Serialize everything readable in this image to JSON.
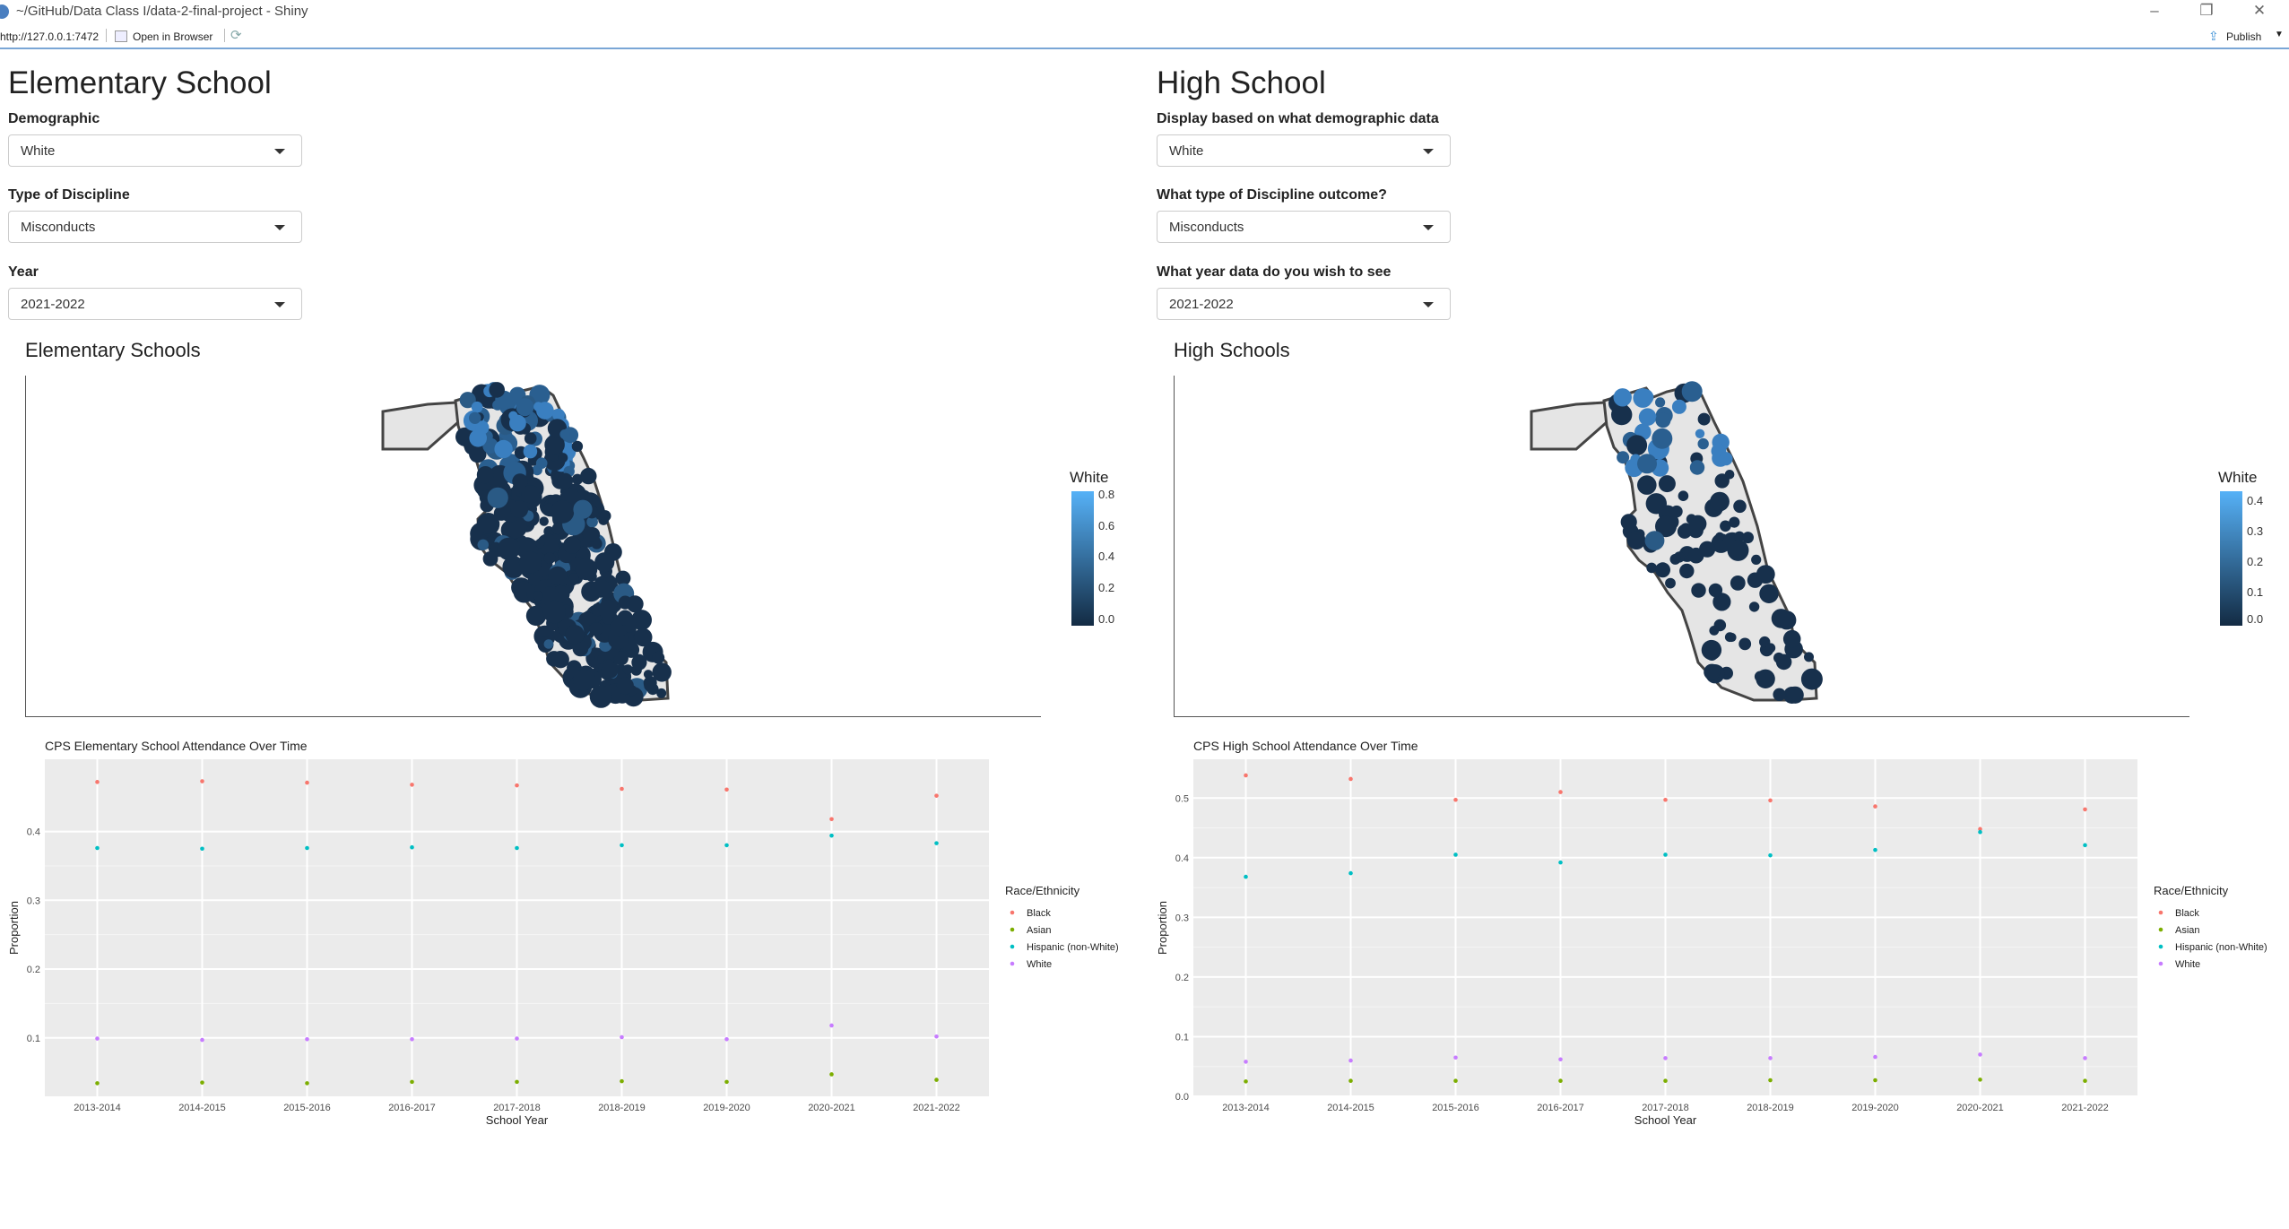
{
  "window": {
    "title": "~/GitHub/Data Class I/data-2-final-project - Shiny"
  },
  "toolbar": {
    "url": "http://127.0.0.1:7472",
    "open_browser": "Open in Browser",
    "publish": "Publish"
  },
  "elementary": {
    "heading": "Elementary School",
    "demographic": {
      "label": "Demographic",
      "value": "White"
    },
    "discipline": {
      "label": "Type of Discipline",
      "value": "Misconducts"
    },
    "year": {
      "label": "Year",
      "value": "2021-2022"
    },
    "map": {
      "title": "Elementary Schools",
      "legend_title": "White",
      "legend_ticks": [
        "0.8",
        "0.6",
        "0.4",
        "0.2",
        "0.0"
      ]
    }
  },
  "high": {
    "heading": "High School",
    "demographic": {
      "label": "Display based on what demographic data",
      "value": "White"
    },
    "discipline": {
      "label": "What type of Discipline outcome?",
      "value": "Misconducts"
    },
    "year": {
      "label": "What year data do you wish to see",
      "value": "2021-2022"
    },
    "map": {
      "title": "High Schools",
      "legend_title": "White",
      "legend_ticks": [
        "0.4",
        "0.3",
        "0.2",
        "0.1",
        "0.0"
      ]
    }
  },
  "chart_data": [
    {
      "type": "scatter",
      "title": "CPS Elementary School Attendance Over Time",
      "xlabel": "School Year",
      "ylabel": "Proportion",
      "categories": [
        "2013-2014",
        "2014-2015",
        "2015-2016",
        "2016-2017",
        "2017-2018",
        "2018-2019",
        "2019-2020",
        "2020-2021",
        "2021-2022"
      ],
      "ylim": [
        0.015,
        0.505
      ],
      "yticks": [
        0.1,
        0.2,
        0.3,
        0.4
      ],
      "legend_title": "Race/Ethnicity",
      "legend_position": "right",
      "grid": true,
      "series": [
        {
          "name": "Black",
          "color": "#F8766D",
          "values": [
            0.472,
            0.473,
            0.471,
            0.468,
            0.467,
            0.462,
            0.461,
            0.418,
            0.452
          ]
        },
        {
          "name": "Asian",
          "color": "#7CAE00",
          "values": [
            0.034,
            0.035,
            0.034,
            0.036,
            0.036,
            0.037,
            0.036,
            0.047,
            0.039
          ]
        },
        {
          "name": "Hispanic (non-White)",
          "color": "#00BFC4",
          "values": [
            0.376,
            0.375,
            0.376,
            0.377,
            0.376,
            0.38,
            0.38,
            0.394,
            0.383
          ]
        },
        {
          "name": "White",
          "color": "#C77CFF",
          "values": [
            0.099,
            0.097,
            0.098,
            0.098,
            0.099,
            0.101,
            0.098,
            0.118,
            0.102
          ]
        }
      ]
    },
    {
      "type": "scatter",
      "title": "CPS High School Attendance Over Time",
      "xlabel": "School Year",
      "ylabel": "Proportion",
      "categories": [
        "2013-2014",
        "2014-2015",
        "2015-2016",
        "2016-2017",
        "2017-2018",
        "2018-2019",
        "2019-2020",
        "2020-2021",
        "2021-2022"
      ],
      "ylim": [
        0.0,
        0.565
      ],
      "yticks": [
        0.0,
        0.1,
        0.2,
        0.3,
        0.4,
        0.5
      ],
      "legend_title": "Race/Ethnicity",
      "legend_position": "right",
      "grid": true,
      "series": [
        {
          "name": "Black",
          "color": "#F8766D",
          "values": [
            0.538,
            0.532,
            0.497,
            0.51,
            0.497,
            0.496,
            0.486,
            0.448,
            0.481
          ]
        },
        {
          "name": "Asian",
          "color": "#7CAE00",
          "values": [
            0.025,
            0.026,
            0.026,
            0.026,
            0.026,
            0.027,
            0.027,
            0.028,
            0.026
          ]
        },
        {
          "name": "Hispanic (non-White)",
          "color": "#00BFC4",
          "values": [
            0.368,
            0.374,
            0.405,
            0.392,
            0.405,
            0.404,
            0.413,
            0.443,
            0.421
          ]
        },
        {
          "name": "White",
          "color": "#C77CFF",
          "values": [
            0.058,
            0.06,
            0.065,
            0.062,
            0.064,
            0.064,
            0.066,
            0.07,
            0.064
          ]
        }
      ]
    }
  ]
}
